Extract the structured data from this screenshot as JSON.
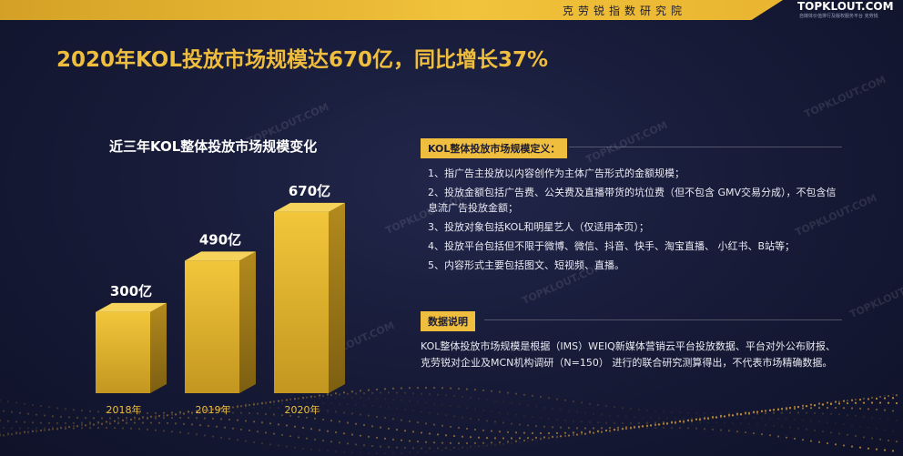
{
  "header": {
    "institute": "克劳锐指数研究院",
    "brand_name": "TOPKLOUT.COM",
    "brand_sub": "自媒体价值排行及版权服务平台 克劳锐"
  },
  "title": "2020年KOL投放市场规模达670亿，同比增长37%",
  "watermark_text": "TOPKLOUT.COM",
  "colors": {
    "accent": "#f0be3e",
    "background": "#161a36",
    "bar": "#e9b92f"
  },
  "chart_data": {
    "type": "bar",
    "title": "近三年KOL整体投放市场规模变化",
    "categories": [
      "2018年",
      "2019年",
      "2020年"
    ],
    "values": [
      300,
      490,
      670
    ],
    "value_labels": [
      "300亿",
      "490亿",
      "670亿"
    ],
    "unit": "亿",
    "grid": false,
    "legend": "none"
  },
  "definition": {
    "heading": "KOL整体投放市场规模定义：",
    "items": [
      "1、指广告主投放以内容创作为主体广告形式的金额规模；",
      "2、投放金额包括广告费、公关费及直播带货的坑位费（但不包含 GMV交易分成），不包含信息流广告投放金额；",
      "3、投放对象包括KOL和明星艺人（仅适用本页）；",
      "4、投放平台包括但不限于微博、微信、抖音、快手、淘宝直播、 小红书、B站等；",
      "5、内容形式主要包括图文、短视频、直播。"
    ]
  },
  "data_note": {
    "heading": "数据说明",
    "body": "KOL整体投放市场规模是根据（IMS）WEIQ新媒体营销云平台投放数据、平台对外公布财报、克劳锐对企业及MCN机构调研（N=150） 进行的联合研究测算得出，不代表市场精确数据。"
  }
}
